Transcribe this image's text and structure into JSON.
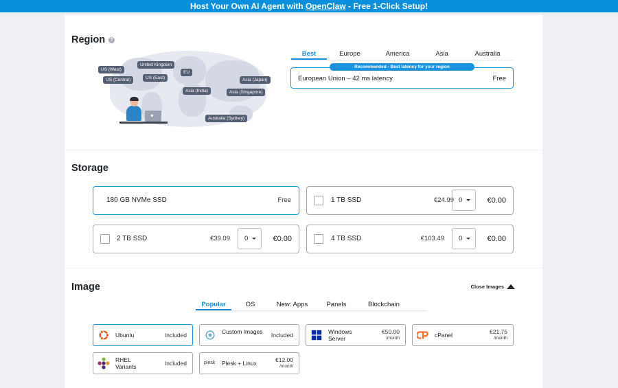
{
  "banner": {
    "prefix": "Host Your Own AI Agent with ",
    "link": "OpenClaw",
    "suffix": " - Free 1-Click Setup!"
  },
  "region": {
    "title": "Region",
    "help": "?",
    "tabs": [
      "Best",
      "Europe",
      "America",
      "Asia",
      "Australia"
    ],
    "active_tab": "Best",
    "map_pins": [
      "US (West)",
      "United Kingdom",
      "EU",
      "US (Central)",
      "US (East)",
      "Asia (Japan)",
      "Asia (India)",
      "Asia (Singapore)",
      "Australia (Sydney)"
    ],
    "recommended": "Recommended - Best latency for your region",
    "selected_region": "European Union – 42 ms latency",
    "selected_price": "Free"
  },
  "storage": {
    "title": "Storage",
    "base": {
      "label": "180 GB NVMe SSD",
      "price": "Free"
    },
    "addons": [
      {
        "label": "1 TB SSD",
        "price": "€24.99",
        "qty": "0",
        "total": "€0.00"
      },
      {
        "label": "2 TB SSD",
        "price": "€39.09",
        "qty": "0",
        "total": "€0.00"
      },
      {
        "label": "4 TB SSD",
        "price": "€103.49",
        "qty": "0",
        "total": "€0.00"
      }
    ]
  },
  "image": {
    "title": "Image",
    "close_label": "Close Images",
    "tabs": [
      "Popular",
      "OS",
      "New: Apps",
      "Panels",
      "Blockchain"
    ],
    "active_tab": "Popular",
    "items": [
      {
        "name": "Ubuntu",
        "price": "Included",
        "icon": "ubuntu-icon"
      },
      {
        "name": "Custom Images",
        "price": "Included",
        "icon": "custom-image-icon"
      },
      {
        "name": "Windows Server",
        "price": "€50.00",
        "per": "/month",
        "icon": "windows-icon"
      },
      {
        "name": "cPanel",
        "price": "€21.75",
        "per": "/month",
        "icon": "cpanel-icon"
      },
      {
        "name": "RHEL Variants",
        "price": "Included",
        "icon": "rhel-icon"
      },
      {
        "name": "Plesk + Linux",
        "price": "€12.00",
        "per": "/month",
        "icon": "plesk-icon",
        "icon_text": "plesk"
      }
    ]
  },
  "colors": {
    "accent": "#1c93e0",
    "banner": "#0a8fdd",
    "ubuntu": "#e95420",
    "cpanel": "#ff6c2c",
    "windows": "#0a2aa6"
  }
}
